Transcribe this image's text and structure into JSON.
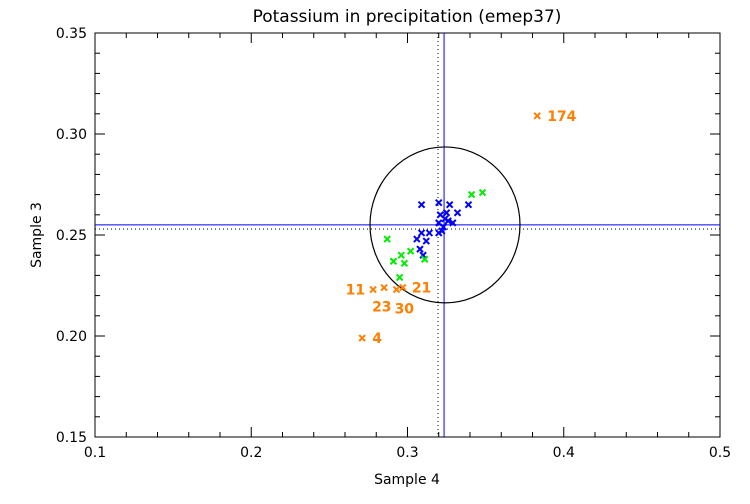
{
  "chart_data": {
    "type": "scatter",
    "title": "Potassium in precipitation (emep37)",
    "xlabel": "Sample 4",
    "ylabel": "Sample 3",
    "xlim": [
      0.1,
      0.5
    ],
    "ylim": [
      0.15,
      0.35
    ],
    "xticks": [
      "0.1",
      "0.2",
      "0.3",
      "0.4",
      "0.5"
    ],
    "yticks": [
      "0.15",
      "0.20",
      "0.25",
      "0.30",
      "0.35"
    ],
    "grid": false,
    "colors": {
      "blue": "#0000ff",
      "green": "#00ee00",
      "orange": "#ff7f00",
      "axis": "#000000"
    },
    "reference": {
      "solid_x": 0.3234,
      "solid_y": 0.255,
      "dotted_x": 0.3195,
      "dotted_y": 0.253,
      "circle_center": [
        0.324,
        0.255
      ],
      "circle_radius_x": 0.048,
      "circle_radius_y": 0.0386
    },
    "series": [
      {
        "color": "blue",
        "points": [
          [
            0.309,
            0.265
          ],
          [
            0.32,
            0.266
          ],
          [
            0.327,
            0.265
          ],
          [
            0.339,
            0.265
          ],
          [
            0.332,
            0.261
          ],
          [
            0.325,
            0.261
          ],
          [
            0.321,
            0.26
          ],
          [
            0.326,
            0.257
          ],
          [
            0.329,
            0.256
          ],
          [
            0.32,
            0.256
          ],
          [
            0.323,
            0.254
          ],
          [
            0.32,
            0.251
          ],
          [
            0.314,
            0.251
          ],
          [
            0.309,
            0.251
          ],
          [
            0.306,
            0.248
          ],
          [
            0.312,
            0.247
          ],
          [
            0.308,
            0.243
          ],
          [
            0.31,
            0.24
          ],
          [
            0.324,
            0.258
          ],
          [
            0.322,
            0.252
          ]
        ]
      },
      {
        "color": "green",
        "points": [
          [
            0.341,
            0.27
          ],
          [
            0.348,
            0.271
          ],
          [
            0.287,
            0.248
          ],
          [
            0.302,
            0.242
          ],
          [
            0.296,
            0.24
          ],
          [
            0.291,
            0.237
          ],
          [
            0.298,
            0.236
          ],
          [
            0.311,
            0.238
          ],
          [
            0.295,
            0.229
          ]
        ]
      },
      {
        "color": "orange",
        "points": [
          {
            "x": 0.383,
            "y": 0.309,
            "label": "174"
          },
          {
            "x": 0.271,
            "y": 0.199,
            "label": "4"
          },
          {
            "x": 0.278,
            "y": 0.223,
            "label": "11"
          },
          {
            "x": 0.285,
            "y": 0.224,
            "label": "23"
          },
          {
            "x": 0.293,
            "y": 0.223,
            "label": "30"
          },
          {
            "x": 0.297,
            "y": 0.224,
            "label": "21"
          }
        ]
      }
    ]
  }
}
